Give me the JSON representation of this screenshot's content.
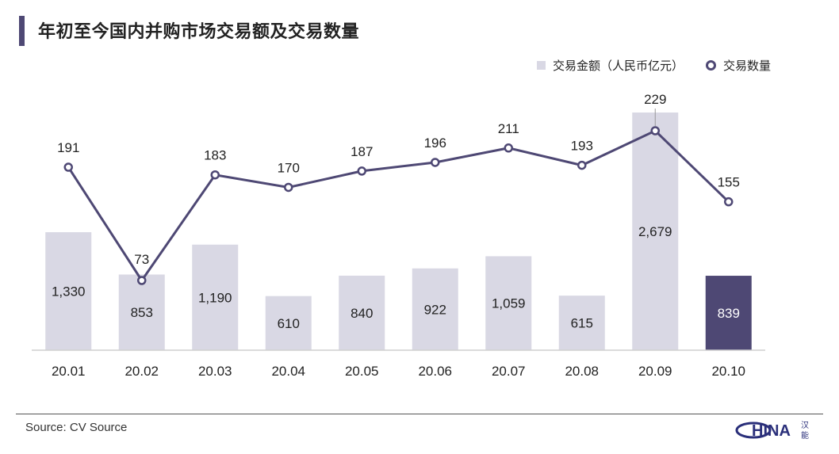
{
  "title": "年初至今国内并购市场交易额及交易数量",
  "source": "Source: CV Source",
  "logo_text": "HINA",
  "colors": {
    "bar": "#d9d8e4",
    "bar_highlight": "#4e4874",
    "line": "#4e4874",
    "accent": "#4e4874"
  },
  "chart_data": {
    "type": "bar",
    "categories": [
      "20.01",
      "20.02",
      "20.03",
      "20.04",
      "20.05",
      "20.06",
      "20.07",
      "20.08",
      "20.09",
      "20.10"
    ],
    "series": [
      {
        "name": "交易金额（人民币亿元）",
        "type": "bar",
        "values": [
          1330,
          853,
          1190,
          610,
          840,
          922,
          1059,
          615,
          2679,
          839
        ],
        "labels": [
          "1,330",
          "853",
          "1,190",
          "610",
          "840",
          "922",
          "1,059",
          "615",
          "2,679",
          "839"
        ],
        "highlight_index": 9
      },
      {
        "name": "交易数量",
        "type": "line",
        "values": [
          191,
          73,
          183,
          170,
          187,
          196,
          211,
          193,
          229,
          155
        ]
      }
    ],
    "legend": "top-right"
  }
}
